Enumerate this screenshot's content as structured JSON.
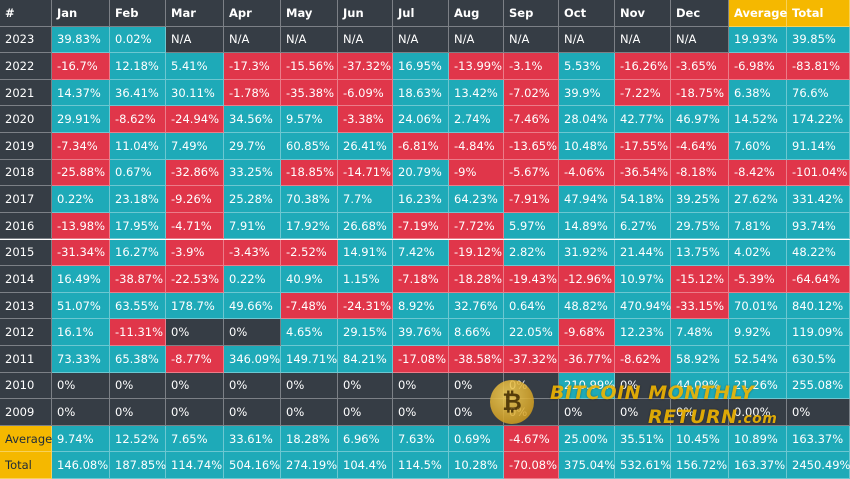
{
  "chart_data": {
    "type": "table",
    "title": "Bitcoin Monthly Returns",
    "corner_label": "#",
    "columns": [
      "Jan",
      "Feb",
      "Mar",
      "Apr",
      "May",
      "Jun",
      "Jul",
      "Aug",
      "Sep",
      "Oct",
      "Nov",
      "Dec",
      "Average",
      "Total"
    ],
    "rows": [
      {
        "label": "2023",
        "values": [
          "39.83%",
          "0.02%",
          "N/A",
          "N/A",
          "N/A",
          "N/A",
          "N/A",
          "N/A",
          "N/A",
          "N/A",
          "N/A",
          "N/A",
          "19.93%",
          "39.85%"
        ]
      },
      {
        "label": "2022",
        "values": [
          "-16.7%",
          "12.18%",
          "5.41%",
          "-17.3%",
          "-15.56%",
          "-37.32%",
          "16.95%",
          "-13.99%",
          "-3.1%",
          "5.53%",
          "-16.26%",
          "-3.65%",
          "-6.98%",
          "-83.81%"
        ]
      },
      {
        "label": "2021",
        "values": [
          "14.37%",
          "36.41%",
          "30.11%",
          "-1.78%",
          "-35.38%",
          "-6.09%",
          "18.63%",
          "13.42%",
          "-7.02%",
          "39.9%",
          "-7.22%",
          "-18.75%",
          "6.38%",
          "76.6%"
        ]
      },
      {
        "label": "2020",
        "values": [
          "29.91%",
          "-8.62%",
          "-24.94%",
          "34.56%",
          "9.57%",
          "-3.38%",
          "24.06%",
          "2.74%",
          "-7.46%",
          "28.04%",
          "42.77%",
          "46.97%",
          "14.52%",
          "174.22%"
        ]
      },
      {
        "label": "2019",
        "values": [
          "-7.34%",
          "11.04%",
          "7.49%",
          "29.7%",
          "60.85%",
          "26.41%",
          "-6.81%",
          "-4.84%",
          "-13.65%",
          "10.48%",
          "-17.55%",
          "-4.64%",
          "7.60%",
          "91.14%"
        ]
      },
      {
        "label": "2018",
        "values": [
          "-25.88%",
          "0.67%",
          "-32.86%",
          "33.25%",
          "-18.85%",
          "-14.71%",
          "20.79%",
          "-9%",
          "-5.67%",
          "-4.06%",
          "-36.54%",
          "-8.18%",
          "-8.42%",
          "-101.04%"
        ]
      },
      {
        "label": "2017",
        "values": [
          "0.22%",
          "23.18%",
          "-9.26%",
          "25.28%",
          "70.38%",
          "7.7%",
          "16.23%",
          "64.23%",
          "-7.91%",
          "47.94%",
          "54.18%",
          "39.25%",
          "27.62%",
          "331.42%"
        ]
      },
      {
        "label": "2016",
        "values": [
          "-13.98%",
          "17.95%",
          "-4.71%",
          "7.91%",
          "17.92%",
          "26.68%",
          "-7.19%",
          "-7.72%",
          "5.97%",
          "14.89%",
          "6.27%",
          "29.75%",
          "7.81%",
          "93.74%"
        ]
      },
      {
        "label": "2015",
        "values": [
          "-31.34%",
          "16.27%",
          "-3.9%",
          "-3.43%",
          "-2.52%",
          "14.91%",
          "7.42%",
          "-19.12%",
          "2.82%",
          "31.92%",
          "21.44%",
          "13.75%",
          "4.02%",
          "48.22%"
        ]
      },
      {
        "label": "2014",
        "values": [
          "16.49%",
          "-38.87%",
          "-22.53%",
          "0.22%",
          "40.9%",
          "1.15%",
          "-7.18%",
          "-18.28%",
          "-19.43%",
          "-12.96%",
          "10.97%",
          "-15.12%",
          "-5.39%",
          "-64.64%"
        ]
      },
      {
        "label": "2013",
        "values": [
          "51.07%",
          "63.55%",
          "178.7%",
          "49.66%",
          "-7.48%",
          "-24.31%",
          "8.92%",
          "32.76%",
          "0.64%",
          "48.82%",
          "470.94%",
          "-33.15%",
          "70.01%",
          "840.12%"
        ]
      },
      {
        "label": "2012",
        "values": [
          "16.1%",
          "-11.31%",
          "0%",
          "0%",
          "4.65%",
          "29.15%",
          "39.76%",
          "8.66%",
          "22.05%",
          "-9.68%",
          "12.23%",
          "7.48%",
          "9.92%",
          "119.09%"
        ]
      },
      {
        "label": "2011",
        "values": [
          "73.33%",
          "65.38%",
          "-8.77%",
          "346.09%",
          "149.71%",
          "84.21%",
          "-17.08%",
          "-38.58%",
          "-37.32%",
          "-36.77%",
          "-8.62%",
          "58.92%",
          "52.54%",
          "630.5%"
        ]
      },
      {
        "label": "2010",
        "values": [
          "0%",
          "0%",
          "0%",
          "0%",
          "0%",
          "0%",
          "0%",
          "0%",
          "0%",
          "210.99%",
          "0%",
          "44.09%",
          "21.26%",
          "255.08%"
        ]
      },
      {
        "label": "2009",
        "values": [
          "0%",
          "0%",
          "0%",
          "0%",
          "0%",
          "0%",
          "0%",
          "0%",
          "0%",
          "0%",
          "0%",
          "0%",
          "0.00%",
          "0%"
        ]
      },
      {
        "label": "Average",
        "label_style": "gold",
        "values": [
          "9.74%",
          "12.52%",
          "7.65%",
          "33.61%",
          "18.28%",
          "6.96%",
          "7.63%",
          "0.69%",
          "-4.67%",
          "25.00%",
          "35.51%",
          "10.45%",
          "10.89%",
          "163.37%"
        ]
      },
      {
        "label": "Total",
        "label_style": "gold",
        "values": [
          "146.08%",
          "187.85%",
          "114.74%",
          "504.16%",
          "274.19%",
          "104.4%",
          "114.5%",
          "10.28%",
          "-70.08%",
          "375.04%",
          "532.61%",
          "156.72%",
          "163.37%",
          "2450.49%"
        ]
      }
    ],
    "colors": {
      "positive": "#1eaab8",
      "negative": "#e0364a",
      "neutral": "#363d45",
      "header": "#363d45",
      "highlight": "#f5b800"
    }
  },
  "watermark": {
    "line1": "BITCOIN MONTHLY",
    "line2": "RETURN",
    "suffix": ".com",
    "coin_symbol": "₿"
  }
}
